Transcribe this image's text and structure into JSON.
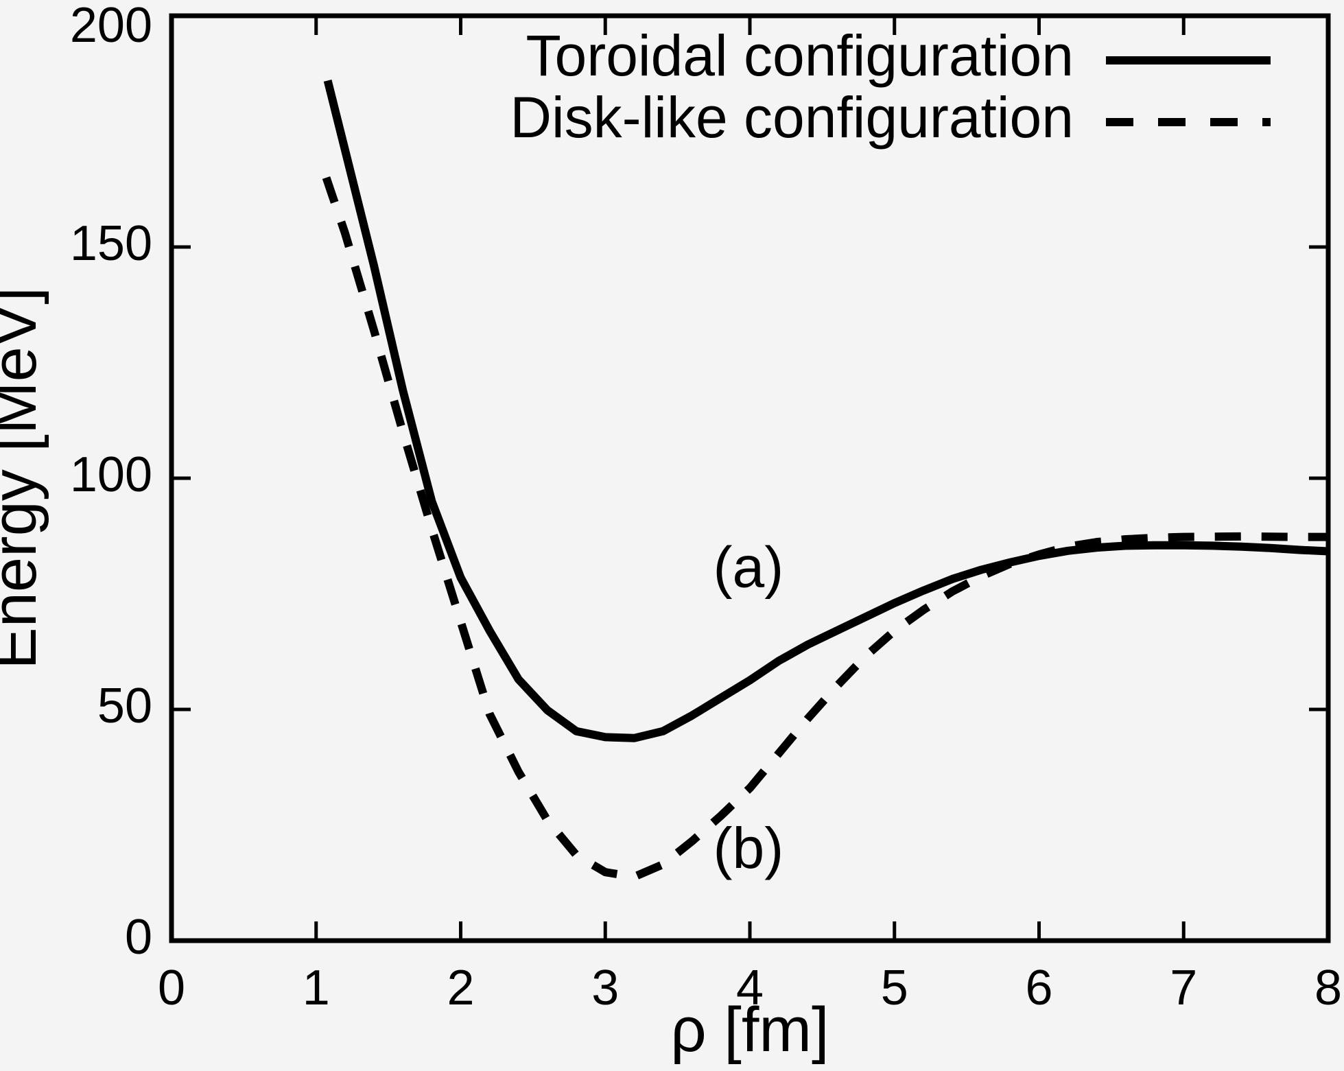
{
  "figure": {
    "background": "#f4f4f4",
    "ink_color": "#000000"
  },
  "chart_data": {
    "type": "line",
    "title": "",
    "xlabel": "ρ [fm]",
    "ylabel": "Energy [MeV]",
    "xlim": [
      0,
      8
    ],
    "ylim": [
      0,
      200
    ],
    "xticks": [
      0,
      1,
      2,
      3,
      4,
      5,
      6,
      7,
      8
    ],
    "yticks": [
      0,
      50,
      100,
      150,
      200
    ],
    "grid": false,
    "tick_style": "inward-mirrored-all-sides",
    "legend_position": "top-right-inside",
    "series": [
      {
        "name": "Toroidal configuration",
        "style": "solid",
        "curve_label": "(a)",
        "x": [
          1.08,
          1.2,
          1.4,
          1.6,
          1.8,
          2.0,
          2.2,
          2.4,
          2.6,
          2.8,
          3.0,
          3.2,
          3.4,
          3.6,
          3.8,
          4.0,
          4.2,
          4.4,
          4.6,
          4.8,
          5.0,
          5.2,
          5.4,
          5.6,
          5.8,
          6.0,
          6.2,
          6.4,
          6.6,
          6.8,
          7.0,
          7.2,
          7.4,
          7.6,
          7.8,
          8.0
        ],
        "y": [
          186,
          171,
          146,
          119,
          95,
          78.5,
          67,
          56.5,
          49.8,
          45.3,
          44,
          43.8,
          45.3,
          48.7,
          52.5,
          56.3,
          60.5,
          64,
          67,
          70,
          73,
          75.7,
          78.2,
          80.2,
          81.8,
          83.2,
          84.3,
          85,
          85.4,
          85.5,
          85.5,
          85.4,
          85.2,
          84.9,
          84.5,
          84.2
        ]
      },
      {
        "name": "Disk-like configuration",
        "style": "dashed",
        "curve_label": "(b)",
        "x": [
          1.07,
          1.2,
          1.4,
          1.6,
          1.8,
          2.0,
          2.2,
          2.4,
          2.6,
          2.8,
          3.0,
          3.2,
          3.4,
          3.6,
          3.8,
          4.0,
          4.2,
          4.4,
          4.6,
          4.8,
          5.0,
          5.2,
          5.4,
          5.6,
          5.8,
          6.0,
          6.2,
          6.4,
          6.6,
          6.8,
          7.0,
          7.4,
          7.8,
          8.0
        ],
        "y": [
          165,
          153,
          132,
          110,
          89,
          69,
          49,
          36.5,
          26,
          18.5,
          14.8,
          13.8,
          16.5,
          21.5,
          27,
          33,
          40.5,
          48,
          55,
          61.5,
          67,
          71.5,
          75.5,
          78.8,
          81.5,
          83.5,
          85.2,
          86.2,
          86.8,
          87.1,
          87.3,
          87.4,
          87.3,
          87.3
        ]
      }
    ],
    "annotations": [
      {
        "text": "(a)",
        "x": 3.99,
        "y": 79.8
      },
      {
        "text": "(b)",
        "x": 3.99,
        "y": 19.0
      }
    ]
  }
}
